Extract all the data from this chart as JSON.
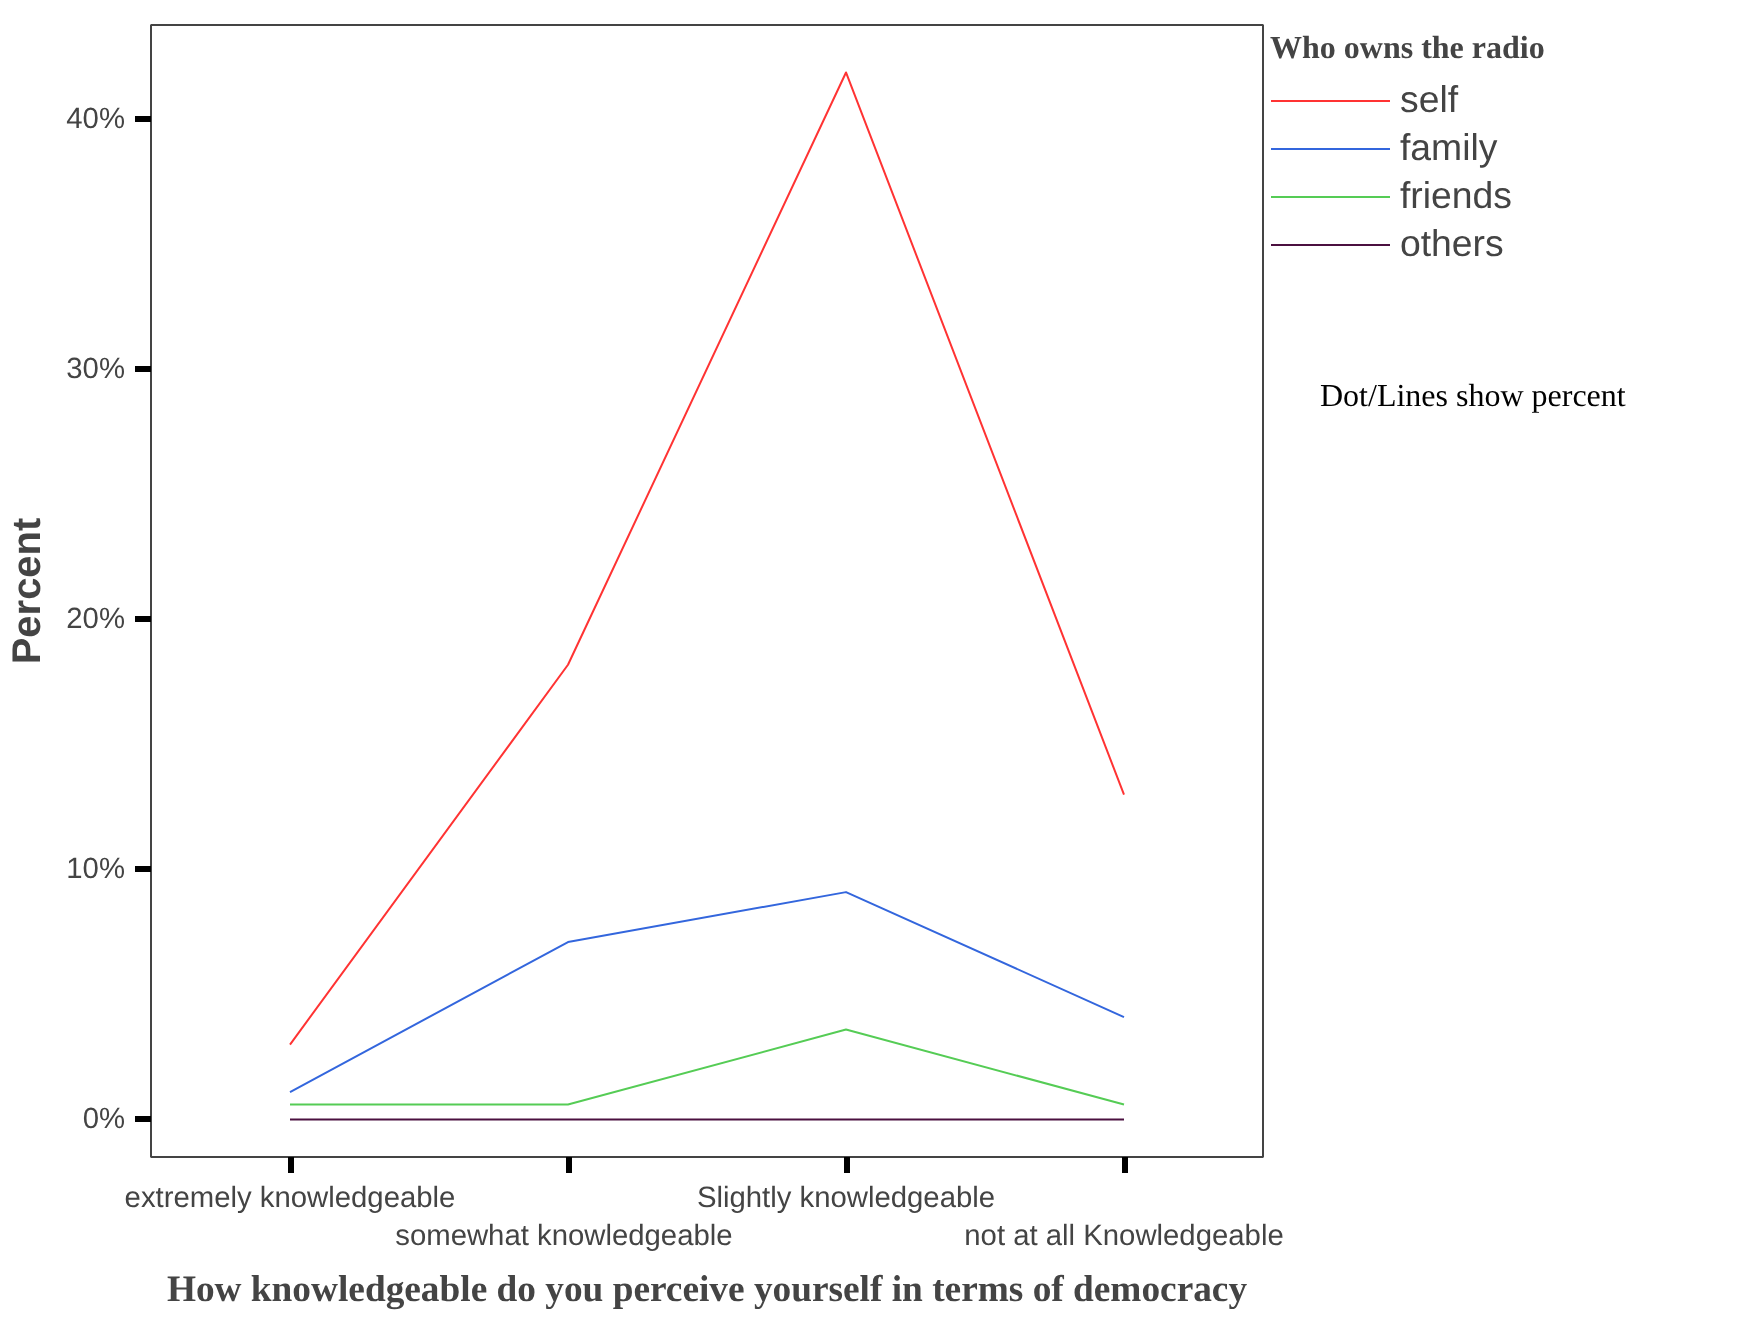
{
  "chart_data": {
    "type": "line",
    "xlabel": "How knowledgeable do you perceive yourself in terms of democracy",
    "ylabel": "Percent",
    "legend_title": "Who owns the radio",
    "legend": "top right",
    "grid": false,
    "marker": "none",
    "line_style": "solid",
    "categories": [
      "extremely knowledgeable",
      "somewhat  knowledgeable",
      "Slightly knowledgeable",
      "not at all Knowledgeable"
    ],
    "ylim": [
      -1.5,
      43.8
    ],
    "yticks": [
      {
        "value": 0,
        "label": "0%"
      },
      {
        "value": 10,
        "label": "10%"
      },
      {
        "value": 20,
        "label": "20%"
      },
      {
        "value": 30,
        "label": "30%"
      },
      {
        "value": 40,
        "label": "40%"
      }
    ],
    "series": [
      {
        "name": "self",
        "color": "#ff3333",
        "values": [
          3.0,
          18.2,
          41.9,
          13.0
        ]
      },
      {
        "name": "family",
        "color": "#3366dd",
        "values": [
          1.1,
          7.1,
          9.1,
          4.1
        ]
      },
      {
        "name": "friends",
        "color": "#55cc55",
        "values": [
          0.6,
          0.6,
          3.6,
          0.6
        ]
      },
      {
        "name": "others",
        "color": "#4b1040",
        "values": [
          0.0,
          0.0,
          0.0,
          0.0
        ]
      }
    ],
    "annotations": [
      "Dot/Lines show percent"
    ]
  }
}
